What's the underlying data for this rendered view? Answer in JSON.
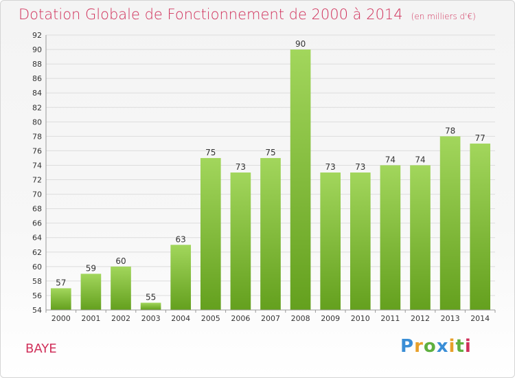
{
  "chart_data": {
    "type": "bar",
    "title": "Dotation Globale de Fonctionnement de 2000 à 2014",
    "subtitle": "(en milliers d'€)",
    "categories": [
      "2000",
      "2001",
      "2002",
      "2003",
      "2004",
      "2005",
      "2006",
      "2007",
      "2008",
      "2009",
      "2010",
      "2011",
      "2012",
      "2013",
      "2014"
    ],
    "values": [
      57,
      59,
      60,
      55,
      63,
      75,
      73,
      75,
      90,
      73,
      73,
      74,
      74,
      78,
      77
    ],
    "ylim": [
      54,
      92
    ],
    "yticks": [
      54,
      56,
      58,
      60,
      62,
      64,
      66,
      68,
      70,
      72,
      74,
      76,
      78,
      80,
      82,
      84,
      86,
      88,
      90,
      92
    ],
    "grid": true,
    "bar_color": "#7cbd3a",
    "bar_color_light": "#9fd45a"
  },
  "footer": {
    "place": "BAYE",
    "logo": "Proxiti"
  }
}
